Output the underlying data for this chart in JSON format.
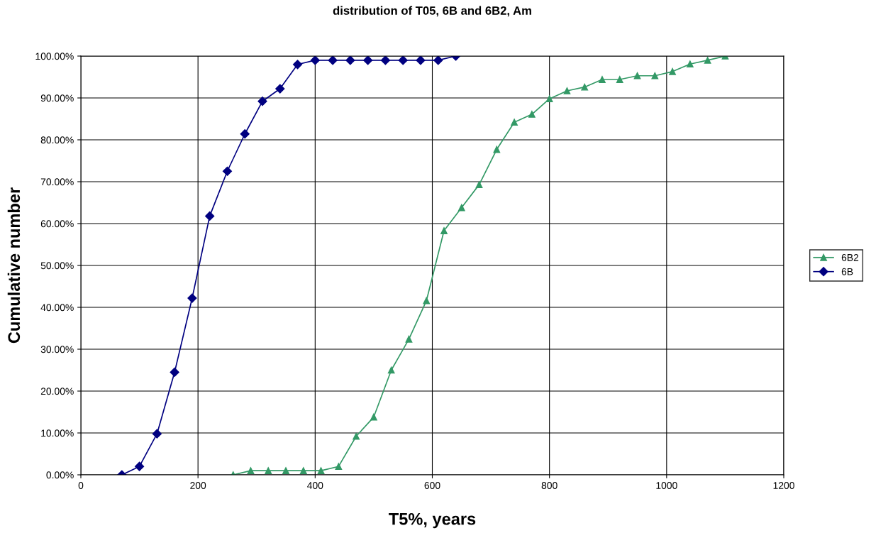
{
  "chart_data": {
    "type": "line",
    "title": "distribution of T05, 6B and 6B2, Am",
    "xlabel": "T5%, years",
    "ylabel": "Cumulative number",
    "xlim": [
      0,
      1200
    ],
    "xticks": [
      0,
      200,
      400,
      600,
      800,
      1000,
      1200
    ],
    "ylim": [
      0,
      100
    ],
    "yticks": [
      {
        "value": 0,
        "label": "0.00%"
      },
      {
        "value": 10,
        "label": "10.00%"
      },
      {
        "value": 20,
        "label": "20.00%"
      },
      {
        "value": 30,
        "label": "30.00%"
      },
      {
        "value": 40,
        "label": "40.00%"
      },
      {
        "value": 50,
        "label": "50.00%"
      },
      {
        "value": 60,
        "label": "60.00%"
      },
      {
        "value": 70,
        "label": "70.00%"
      },
      {
        "value": 80,
        "label": "80.00%"
      },
      {
        "value": 90,
        "label": "90.00%"
      },
      {
        "value": 100,
        "label": "100.00%"
      }
    ],
    "grid": true,
    "legend": "right",
    "series": [
      {
        "name": "6B2",
        "color": "#339966",
        "marker": "triangle",
        "x": [
          260,
          290,
          320,
          350,
          380,
          410,
          440,
          470,
          500,
          530,
          560,
          590,
          620,
          650,
          680,
          710,
          740,
          770,
          800,
          830,
          860,
          890,
          920,
          950,
          980,
          1010,
          1040,
          1070,
          1100
        ],
        "values": [
          0,
          1,
          1,
          1,
          1,
          1,
          2,
          9.2,
          13.8,
          25,
          32.4,
          41.6,
          58.3,
          63.8,
          69.3,
          77.7,
          84.2,
          86.1,
          89.8,
          91.7,
          92.6,
          94.4,
          94.4,
          95.3,
          95.3,
          96.3,
          98.1,
          99,
          100
        ]
      },
      {
        "name": "6B",
        "color": "#000080",
        "marker": "diamond",
        "x": [
          70,
          100,
          130,
          160,
          190,
          220,
          250,
          280,
          310,
          340,
          370,
          400,
          430,
          460,
          490,
          520,
          550,
          580,
          610,
          640
        ],
        "values": [
          0,
          2,
          9.8,
          24.5,
          42.2,
          61.8,
          72.5,
          81.4,
          89.2,
          92.2,
          98,
          99,
          99,
          99,
          99,
          99,
          99,
          99,
          99,
          100
        ]
      }
    ]
  }
}
